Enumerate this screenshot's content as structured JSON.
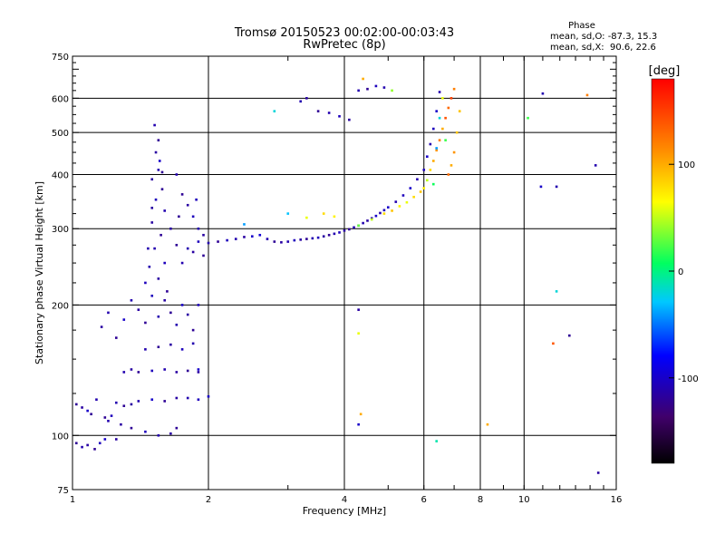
{
  "chart_data": {
    "type": "scatter",
    "title": "Tromsø 20150523 00:02:00-00:03:43",
    "subtitle": "RwPretec (8p)",
    "xlabel": "Frequency [MHz]",
    "ylabel": "Stationary phase Virtual Height [km]",
    "x_scale": "log",
    "y_scale": "log",
    "xlim": [
      1,
      16
    ],
    "ylim": [
      75,
      750
    ],
    "x_ticks": [
      1,
      2,
      4,
      6,
      8,
      10,
      16
    ],
    "x_tick_labels": [
      "1",
      "2",
      "4",
      "6",
      "8",
      "10",
      "16"
    ],
    "y_ticks": [
      75,
      100,
      200,
      300,
      400,
      500,
      600,
      750
    ],
    "y_tick_labels": [
      "75",
      "100",
      "200",
      "300",
      "400",
      "500",
      "600",
      "750"
    ],
    "grid": true,
    "phase_info": {
      "title": "Phase",
      "line_o": "mean, sd,O: -87.3, 15.3",
      "line_x": "mean, sd,X:  90.6, 22.6"
    },
    "colorbar": {
      "label": "[deg]",
      "range": [
        -180,
        180
      ],
      "ticks": [
        -100,
        0,
        100
      ],
      "tick_labels": [
        "-100",
        "0",
        "100"
      ]
    },
    "series": [
      {
        "points": [
          [
            1.02,
            118,
            -120
          ],
          [
            1.05,
            116,
            -115
          ],
          [
            1.08,
            114,
            -100
          ],
          [
            1.1,
            112,
            -120
          ],
          [
            1.13,
            121,
            -110
          ],
          [
            1.18,
            110,
            -120
          ],
          [
            1.22,
            111,
            -105
          ],
          [
            1.25,
            119,
            -110
          ],
          [
            1.3,
            117,
            -120
          ],
          [
            1.35,
            118,
            -115
          ],
          [
            1.4,
            120,
            -110
          ],
          [
            1.5,
            121,
            -100
          ],
          [
            1.6,
            120,
            -120
          ],
          [
            1.7,
            122,
            -115
          ],
          [
            1.8,
            122,
            -110
          ],
          [
            1.9,
            121,
            -105
          ],
          [
            2.0,
            123,
            -100
          ],
          [
            1.02,
            96,
            -120
          ],
          [
            1.05,
            94,
            -110
          ],
          [
            1.08,
            95,
            -115
          ],
          [
            1.12,
            93,
            -120
          ],
          [
            1.15,
            96,
            -105
          ],
          [
            1.2,
            108,
            -110
          ],
          [
            1.28,
            106,
            -115
          ],
          [
            1.35,
            104,
            -120
          ],
          [
            1.45,
            102,
            -105
          ],
          [
            1.55,
            100,
            -110
          ],
          [
            1.65,
            101,
            -115
          ],
          [
            1.7,
            104,
            -120
          ],
          [
            1.18,
            98,
            -100
          ],
          [
            1.25,
            98,
            -115
          ],
          [
            1.16,
            178,
            -115
          ],
          [
            1.2,
            192,
            -110
          ],
          [
            1.25,
            168,
            -120
          ],
          [
            1.3,
            185,
            -100
          ],
          [
            1.35,
            205,
            -110
          ],
          [
            1.4,
            195,
            -115
          ],
          [
            1.45,
            182,
            -120
          ],
          [
            1.5,
            210,
            -105
          ],
          [
            1.55,
            188,
            -110
          ],
          [
            1.6,
            205,
            -115
          ],
          [
            1.65,
            192,
            -120
          ],
          [
            1.7,
            180,
            -110
          ],
          [
            1.75,
            200,
            -100
          ],
          [
            1.8,
            190,
            -115
          ],
          [
            1.85,
            175,
            -120
          ],
          [
            1.9,
            200,
            -105
          ],
          [
            1.3,
            140,
            -110
          ],
          [
            1.35,
            142,
            -115
          ],
          [
            1.4,
            140,
            -120
          ],
          [
            1.5,
            141,
            -105
          ],
          [
            1.6,
            142,
            -110
          ],
          [
            1.7,
            140,
            -115
          ],
          [
            1.8,
            141,
            -120
          ],
          [
            1.9,
            142,
            -100
          ],
          [
            1.45,
            158,
            -110
          ],
          [
            1.55,
            160,
            -120
          ],
          [
            1.65,
            162,
            -115
          ],
          [
            1.75,
            158,
            -105
          ],
          [
            1.85,
            163,
            -110
          ],
          [
            1.9,
            140,
            -115
          ],
          [
            1.52,
            520,
            -110
          ],
          [
            1.55,
            480,
            -120
          ],
          [
            1.53,
            450,
            -115
          ],
          [
            1.56,
            430,
            -100
          ],
          [
            1.55,
            410,
            -110
          ],
          [
            1.5,
            390,
            -115
          ],
          [
            1.58,
            370,
            -120
          ],
          [
            1.53,
            350,
            -105
          ],
          [
            1.6,
            330,
            -110
          ],
          [
            1.5,
            310,
            -115
          ],
          [
            1.57,
            290,
            -120
          ],
          [
            1.52,
            270,
            -110
          ],
          [
            1.6,
            250,
            -105
          ],
          [
            1.55,
            230,
            -115
          ],
          [
            1.62,
            215,
            -120
          ],
          [
            1.48,
            245,
            -110
          ],
          [
            1.5,
            335,
            -115
          ],
          [
            1.58,
            405,
            -120
          ],
          [
            1.45,
            225,
            -105
          ],
          [
            1.47,
            270,
            -110
          ],
          [
            1.7,
            400,
            -110
          ],
          [
            1.75,
            360,
            -120
          ],
          [
            1.8,
            340,
            -115
          ],
          [
            1.85,
            320,
            -105
          ],
          [
            1.9,
            300,
            -110
          ],
          [
            1.95,
            290,
            -115
          ],
          [
            1.7,
            275,
            -120
          ],
          [
            1.8,
            270,
            -110
          ],
          [
            1.9,
            280,
            -105
          ],
          [
            1.85,
            265,
            -115
          ],
          [
            1.95,
            260,
            -120
          ],
          [
            1.75,
            250,
            -110
          ],
          [
            1.65,
            300,
            -115
          ],
          [
            1.72,
            320,
            -120
          ],
          [
            1.88,
            350,
            -105
          ],
          [
            2.0,
            278,
            -110
          ],
          [
            2.1,
            280,
            -120
          ],
          [
            2.2,
            282,
            -105
          ],
          [
            2.3,
            284,
            -110
          ],
          [
            2.4,
            287,
            -115
          ],
          [
            2.5,
            288,
            -100
          ],
          [
            2.6,
            290,
            -95
          ],
          [
            2.7,
            284,
            -110
          ],
          [
            2.8,
            280,
            -120
          ],
          [
            2.9,
            279,
            -115
          ],
          [
            3.0,
            280,
            -110
          ],
          [
            3.1,
            282,
            -105
          ],
          [
            3.2,
            283,
            -115
          ],
          [
            3.3,
            284,
            -120
          ],
          [
            3.4,
            285,
            -110
          ],
          [
            3.5,
            286,
            -105
          ],
          [
            3.6,
            288,
            -115
          ],
          [
            3.7,
            290,
            -120
          ],
          [
            3.8,
            292,
            -110
          ],
          [
            3.9,
            294,
            -105
          ],
          [
            4.0,
            297,
            -115
          ],
          [
            4.1,
            299,
            -120
          ],
          [
            4.2,
            302,
            -110
          ],
          [
            4.3,
            305,
            -105
          ],
          [
            4.4,
            309,
            -110
          ],
          [
            4.5,
            313,
            -115
          ],
          [
            4.6,
            317,
            -110
          ],
          [
            4.7,
            321,
            -100
          ],
          [
            4.8,
            326,
            -110
          ],
          [
            4.9,
            331,
            -105
          ],
          [
            5.0,
            336,
            -100
          ],
          [
            5.2,
            346,
            -110
          ],
          [
            5.4,
            358,
            -105
          ],
          [
            5.6,
            372,
            -100
          ],
          [
            5.8,
            390,
            -110
          ],
          [
            6.0,
            410,
            -105
          ],
          [
            6.1,
            440,
            -100
          ],
          [
            6.2,
            470,
            -110
          ],
          [
            6.3,
            510,
            -105
          ],
          [
            6.4,
            560,
            -100
          ],
          [
            6.5,
            620,
            -110
          ],
          [
            4.3,
            305,
            30
          ],
          [
            4.6,
            315,
            50
          ],
          [
            4.9,
            325,
            80
          ],
          [
            5.1,
            330,
            90
          ],
          [
            5.3,
            338,
            70
          ],
          [
            5.5,
            345,
            60
          ],
          [
            5.7,
            355,
            80
          ],
          [
            5.9,
            365,
            90
          ],
          [
            6.0,
            372,
            70
          ],
          [
            6.1,
            388,
            50
          ],
          [
            6.2,
            410,
            80
          ],
          [
            6.3,
            430,
            100
          ],
          [
            6.4,
            455,
            110
          ],
          [
            6.5,
            480,
            120
          ],
          [
            6.6,
            510,
            100
          ],
          [
            6.7,
            540,
            140
          ],
          [
            6.8,
            570,
            130
          ],
          [
            6.9,
            600,
            150
          ],
          [
            7.0,
            630,
            120
          ],
          [
            7.1,
            500,
            90
          ],
          [
            7.0,
            450,
            110
          ],
          [
            6.9,
            420,
            100
          ],
          [
            6.8,
            400,
            130
          ],
          [
            7.2,
            560,
            90
          ],
          [
            6.6,
            600,
            60
          ],
          [
            6.7,
            480,
            20
          ],
          [
            6.5,
            540,
            -20
          ],
          [
            6.4,
            460,
            -40
          ],
          [
            6.3,
            380,
            10
          ],
          [
            3.6,
            325,
            80
          ],
          [
            3.8,
            320,
            70
          ],
          [
            3.3,
            318,
            60
          ],
          [
            3.2,
            590,
            -110
          ],
          [
            3.3,
            600,
            -115
          ],
          [
            3.5,
            560,
            -120
          ],
          [
            3.7,
            555,
            -110
          ],
          [
            3.9,
            545,
            -105
          ],
          [
            4.1,
            535,
            -115
          ],
          [
            4.3,
            625,
            -110
          ],
          [
            4.5,
            630,
            -120
          ],
          [
            4.7,
            640,
            -105
          ],
          [
            4.9,
            635,
            -110
          ],
          [
            5.1,
            625,
            40
          ],
          [
            2.8,
            560,
            -20
          ],
          [
            4.4,
            665,
            100
          ],
          [
            4.3,
            195,
            -115
          ],
          [
            4.3,
            172,
            60
          ],
          [
            4.35,
            112,
            100
          ],
          [
            4.3,
            106,
            -100
          ],
          [
            8.3,
            106,
            100
          ],
          [
            6.4,
            97,
            -10
          ],
          [
            11.6,
            163,
            140
          ],
          [
            12.6,
            170,
            -120
          ],
          [
            14.6,
            82,
            -115
          ],
          [
            14.4,
            420,
            -110
          ],
          [
            10.2,
            540,
            20
          ],
          [
            10.9,
            375,
            -100
          ],
          [
            11.8,
            375,
            -110
          ],
          [
            11.8,
            215,
            -20
          ],
          [
            13.8,
            610,
            120
          ],
          [
            11.0,
            615,
            -110
          ],
          [
            3.0,
            325,
            -30
          ],
          [
            2.4,
            307,
            -40
          ]
        ]
      }
    ]
  }
}
